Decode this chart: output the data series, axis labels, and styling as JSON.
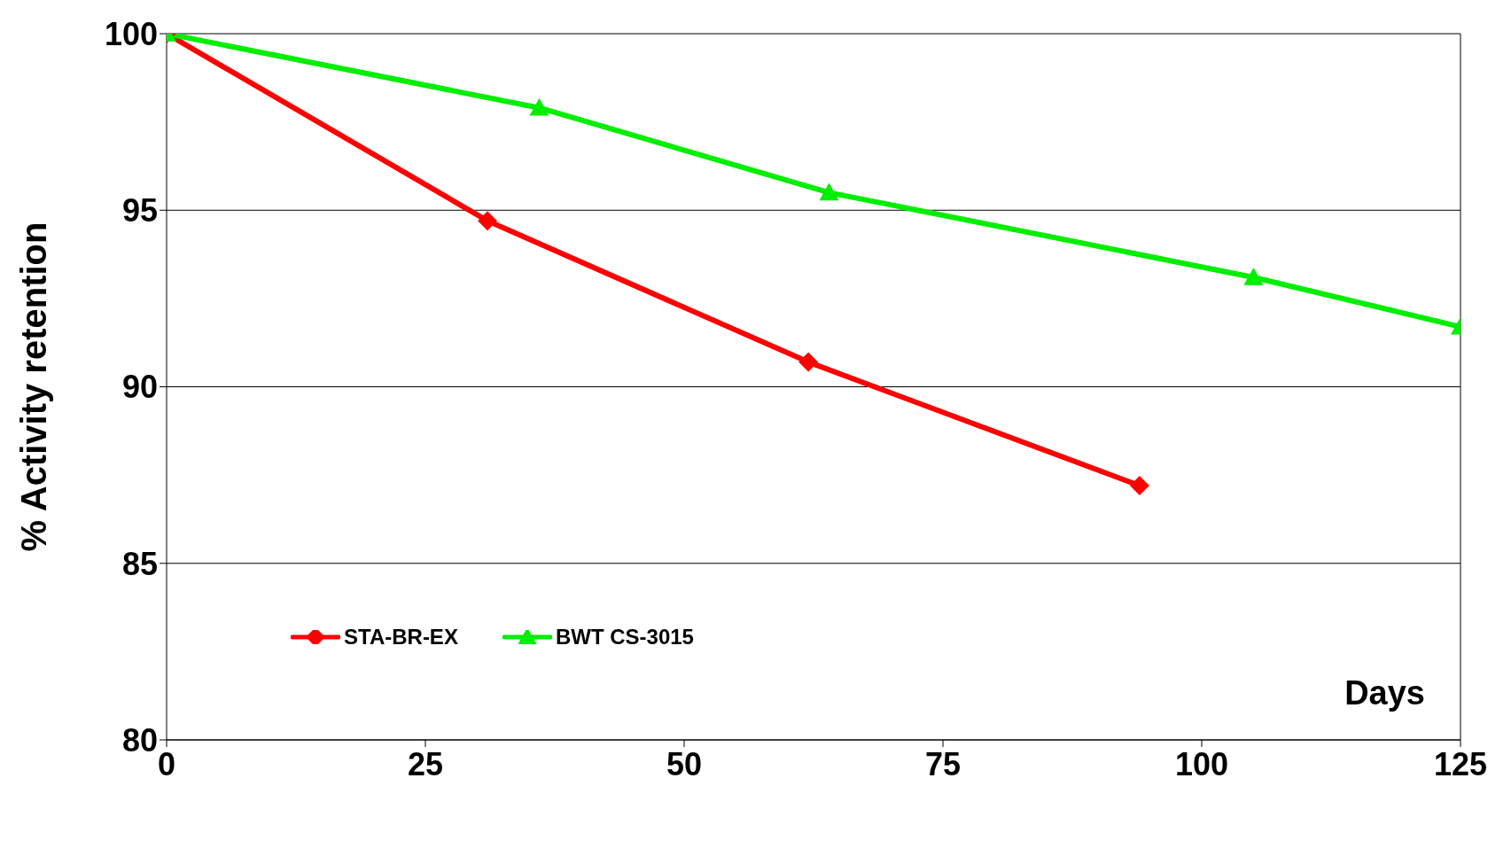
{
  "chart_data": {
    "type": "line",
    "ylabel": "% Activity retention",
    "xlabel": "Days",
    "xlim": [
      0,
      125
    ],
    "xticks": [
      0,
      25,
      50,
      75,
      100,
      125
    ],
    "ylim": [
      80,
      100
    ],
    "yticks": [
      80,
      85,
      90,
      95,
      100
    ],
    "grid": "y",
    "legend": "bottom left",
    "line_style": "solid",
    "series": [
      {
        "name": "STA-BR-EX",
        "color": "#ff0000",
        "marker": "diamond",
        "x": [
          0,
          31,
          62,
          94
        ],
        "values": [
          100,
          94.7,
          90.7,
          87.2
        ]
      },
      {
        "name": "BWT CS-3015",
        "color": "#00ee00",
        "marker": "triangle",
        "x": [
          0,
          36,
          64,
          105,
          125
        ],
        "values": [
          100,
          97.9,
          95.5,
          93.1,
          91.7
        ]
      }
    ]
  }
}
